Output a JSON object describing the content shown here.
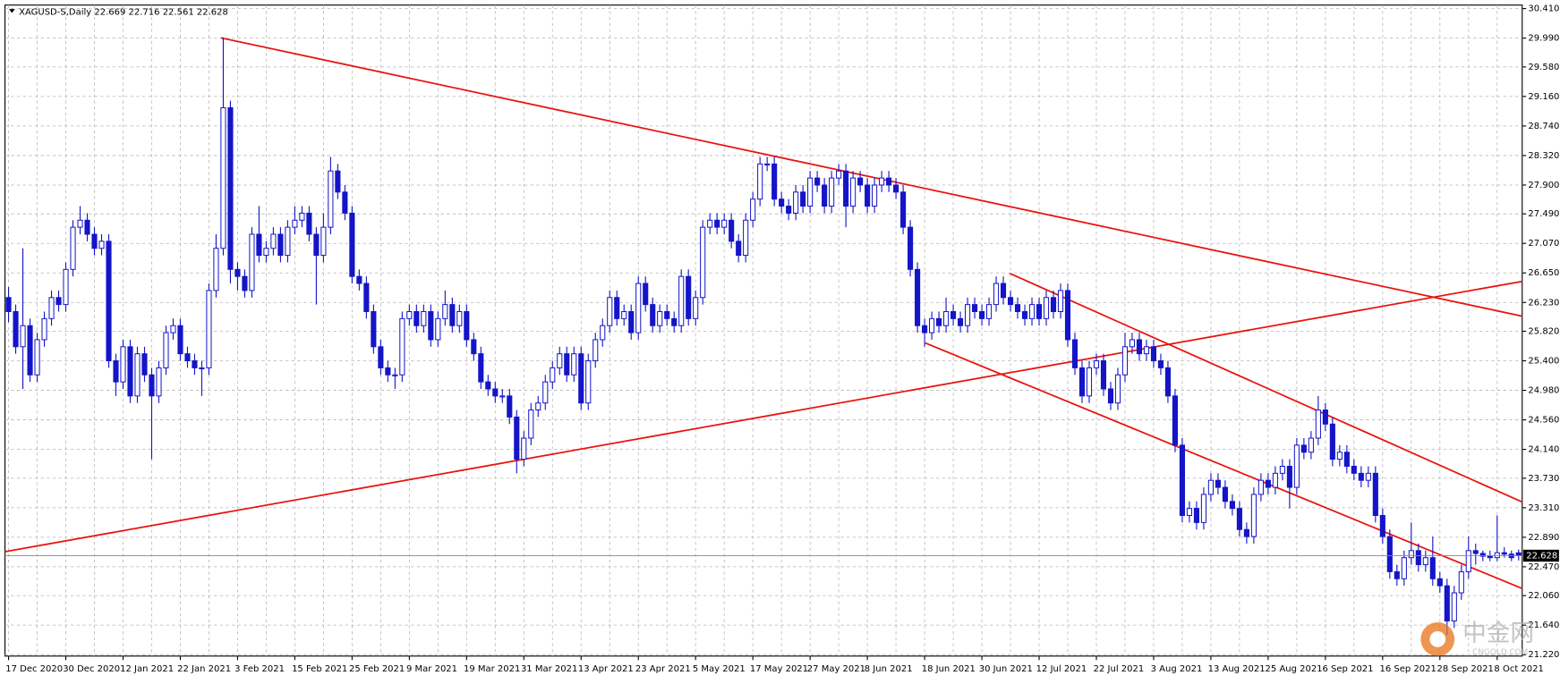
{
  "chart_data": {
    "type": "candlestick",
    "title": "XAGUSD-S,Daily  22.669 22.716 22.561 22.628",
    "watermark": "中金网",
    "watermark_sub": "CNGOLD.COM",
    "up_color": "#ffffff",
    "down_color": "#1414c8",
    "line_color": "#1414c8",
    "grid": true,
    "current_price": 22.628,
    "ylim": [
      21.2,
      30.46
    ],
    "yticks": [
      {
        "value": 30.41,
        "label": "30.410"
      },
      {
        "value": 29.99,
        "label": "29.990"
      },
      {
        "value": 29.58,
        "label": "29.580"
      },
      {
        "value": 29.16,
        "label": "29.160"
      },
      {
        "value": 28.74,
        "label": "28.740"
      },
      {
        "value": 28.32,
        "label": "28.320"
      },
      {
        "value": 27.9,
        "label": "27.900"
      },
      {
        "value": 27.49,
        "label": "27.490"
      },
      {
        "value": 27.07,
        "label": "27.070"
      },
      {
        "value": 26.65,
        "label": "26.650"
      },
      {
        "value": 26.23,
        "label": "26.230"
      },
      {
        "value": 25.82,
        "label": "25.820"
      },
      {
        "value": 25.4,
        "label": "25.400"
      },
      {
        "value": 24.98,
        "label": "24.980"
      },
      {
        "value": 24.56,
        "label": "24.560"
      },
      {
        "value": 24.14,
        "label": "24.140"
      },
      {
        "value": 23.73,
        "label": "23.730"
      },
      {
        "value": 23.31,
        "label": "23.310"
      },
      {
        "value": 22.89,
        "label": "22.890"
      },
      {
        "value": 22.47,
        "label": "22.470"
      },
      {
        "value": 22.06,
        "label": "22.060"
      },
      {
        "value": 21.64,
        "label": "21.640"
      },
      {
        "value": 21.22,
        "label": "21.220"
      }
    ],
    "categories": [
      "17 Dec 2020",
      null,
      null,
      null,
      null,
      null,
      null,
      null,
      "30 Dec 2020",
      null,
      null,
      null,
      null,
      null,
      null,
      null,
      "12 Jan 2021",
      null,
      null,
      null,
      null,
      null,
      null,
      null,
      "22 Jan 2021",
      null,
      null,
      null,
      null,
      null,
      null,
      null,
      "3 Feb 2021",
      null,
      null,
      null,
      null,
      null,
      null,
      null,
      "15 Feb 2021",
      null,
      null,
      null,
      null,
      null,
      null,
      null,
      "25 Feb 2021",
      null,
      null,
      null,
      null,
      null,
      null,
      null,
      "9 Mar 2021",
      null,
      null,
      null,
      null,
      null,
      null,
      null,
      "19 Mar 2021",
      null,
      null,
      null,
      null,
      null,
      null,
      null,
      "31 Mar 2021",
      null,
      null,
      null,
      null,
      null,
      null,
      null,
      "13 Apr 2021",
      null,
      null,
      null,
      null,
      null,
      null,
      null,
      "23 Apr 2021",
      null,
      null,
      null,
      null,
      null,
      null,
      null,
      "5 May 2021",
      null,
      null,
      null,
      null,
      null,
      null,
      null,
      "17 May 2021",
      null,
      null,
      null,
      null,
      null,
      null,
      null,
      "27 May 2021",
      null,
      null,
      null,
      null,
      null,
      null,
      null,
      "8 Jun 2021",
      null,
      null,
      null,
      null,
      null,
      null,
      null,
      "18 Jun 2021",
      null,
      null,
      null,
      null,
      null,
      null,
      null,
      "30 Jun 2021",
      null,
      null,
      null,
      null,
      null,
      null,
      null,
      "12 Jul 2021",
      null,
      null,
      null,
      null,
      null,
      null,
      null,
      "22 Jul 2021",
      null,
      null,
      null,
      null,
      null,
      null,
      null,
      "3 Aug 2021",
      null,
      null,
      null,
      null,
      null,
      null,
      null,
      "13 Aug 2021",
      null,
      null,
      null,
      null,
      null,
      null,
      null,
      "25 Aug 2021",
      null,
      null,
      null,
      null,
      null,
      null,
      null,
      "6 Sep 2021",
      null,
      null,
      null,
      null,
      null,
      null,
      null,
      "16 Sep 2021",
      null,
      null,
      null,
      null,
      null,
      null,
      null,
      "28 Sep 2021",
      null,
      null,
      null,
      null,
      null,
      null,
      null,
      "8 Oct 2021",
      null,
      null,
      null
    ],
    "open": [
      26.3,
      26.1,
      25.6,
      25.9,
      25.2,
      25.7,
      26.0,
      26.3,
      26.2,
      26.7,
      27.3,
      27.4,
      27.2,
      27.0,
      27.1,
      25.4,
      25.1,
      25.6,
      24.9,
      25.5,
      25.2,
      24.9,
      25.3,
      25.8,
      25.9,
      25.5,
      25.4,
      25.3,
      25.3,
      26.4,
      27.0,
      29.0,
      26.7,
      26.6,
      26.4,
      27.2,
      26.9,
      27.0,
      27.2,
      26.9,
      27.3,
      27.4,
      27.5,
      27.2,
      26.9,
      27.3,
      28.1,
      27.8,
      27.5,
      26.6,
      26.5,
      26.1,
      25.6,
      25.3,
      25.2,
      25.2,
      26.0,
      26.1,
      25.9,
      26.1,
      25.7,
      26.0,
      26.2,
      25.9,
      26.1,
      25.7,
      25.5,
      25.1,
      25.0,
      24.9,
      24.9,
      24.6,
      24.0,
      24.3,
      24.7,
      24.8,
      25.1,
      25.3,
      25.5,
      25.2,
      25.5,
      24.8,
      25.4,
      25.7,
      25.9,
      26.3,
      26.0,
      26.1,
      25.8,
      26.5,
      26.2,
      25.9,
      26.1,
      26.0,
      25.9,
      26.6,
      26.0,
      26.3,
      27.3,
      27.4,
      27.3,
      27.4,
      27.1,
      26.9,
      27.4,
      27.7,
      28.2,
      28.2,
      27.7,
      27.6,
      27.5,
      27.8,
      27.6,
      28.0,
      27.9,
      27.6,
      28.0,
      28.1,
      27.6,
      28.0,
      27.9,
      27.6,
      27.9,
      28.0,
      27.9,
      27.8,
      27.3,
      26.7,
      25.9,
      25.8,
      26.0,
      25.9,
      26.1,
      26.0,
      25.9,
      26.2,
      26.1,
      26.0,
      26.2,
      26.5,
      26.3,
      26.2,
      26.1,
      26.0,
      26.2,
      26.0,
      26.3,
      26.1,
      26.4,
      25.7,
      25.3,
      24.9,
      25.3,
      25.4,
      25.0,
      24.8,
      25.2,
      25.6,
      25.7,
      25.5,
      25.6,
      25.4,
      25.3,
      24.9,
      24.2,
      23.2,
      23.3,
      23.1,
      23.5,
      23.7,
      23.6,
      23.4,
      23.3,
      23.0,
      22.9,
      23.5,
      23.7,
      23.6,
      23.8,
      23.9,
      23.6,
      24.2,
      24.1,
      24.3,
      24.7,
      24.5,
      24.0,
      24.1,
      23.9,
      23.8,
      23.7,
      23.8,
      23.2,
      22.9,
      22.4,
      22.3,
      22.6,
      22.7,
      22.5,
      22.6,
      22.3,
      22.2,
      21.7,
      22.1,
      22.4,
      22.7,
      22.66,
      22.62,
      22.6,
      22.67,
      22.65,
      22.669
    ],
    "high": [
      26.45,
      26.2,
      27.0,
      26.0,
      25.8,
      26.1,
      26.4,
      26.4,
      26.8,
      27.4,
      27.6,
      27.5,
      27.3,
      27.2,
      27.2,
      25.5,
      25.7,
      25.7,
      25.6,
      25.6,
      25.3,
      25.4,
      25.9,
      26.0,
      26.0,
      25.6,
      25.5,
      25.4,
      26.5,
      27.2,
      30.0,
      29.1,
      26.8,
      26.7,
      27.3,
      27.6,
      27.1,
      27.3,
      27.3,
      27.4,
      27.6,
      27.6,
      27.6,
      27.3,
      27.5,
      28.3,
      28.2,
      27.9,
      27.6,
      26.7,
      26.6,
      26.2,
      25.7,
      25.4,
      25.3,
      26.1,
      26.2,
      26.2,
      26.2,
      26.2,
      26.1,
      26.4,
      26.3,
      26.2,
      26.2,
      25.8,
      25.6,
      25.2,
      25.1,
      25.0,
      25.0,
      24.7,
      24.4,
      24.8,
      24.9,
      25.2,
      25.4,
      25.6,
      25.6,
      25.6,
      25.6,
      25.5,
      25.8,
      26.0,
      26.4,
      26.4,
      26.2,
      26.2,
      26.6,
      26.6,
      26.3,
      26.2,
      26.2,
      26.1,
      26.7,
      26.7,
      26.4,
      27.4,
      27.5,
      27.5,
      27.5,
      27.5,
      27.2,
      27.5,
      27.8,
      28.3,
      28.3,
      28.3,
      27.8,
      27.7,
      27.9,
      27.9,
      28.1,
      28.1,
      28.0,
      28.1,
      28.2,
      28.2,
      28.1,
      28.1,
      28.0,
      28.0,
      28.1,
      28.1,
      28.0,
      27.9,
      27.4,
      26.8,
      26.0,
      26.1,
      26.1,
      26.3,
      26.2,
      26.1,
      26.3,
      26.3,
      26.2,
      26.3,
      26.6,
      26.6,
      26.4,
      26.3,
      26.2,
      26.3,
      26.3,
      26.4,
      26.4,
      26.5,
      26.5,
      25.8,
      25.4,
      25.4,
      25.5,
      25.5,
      25.1,
      25.3,
      25.8,
      25.8,
      25.8,
      25.7,
      25.7,
      25.5,
      25.4,
      25.0,
      24.3,
      23.4,
      23.4,
      23.6,
      23.8,
      23.8,
      23.7,
      23.5,
      23.4,
      23.1,
      23.6,
      23.8,
      23.8,
      23.9,
      24.0,
      24.0,
      24.3,
      24.3,
      24.4,
      24.9,
      24.8,
      24.6,
      24.2,
      24.2,
      24.0,
      23.9,
      23.9,
      23.9,
      23.3,
      23.0,
      22.5,
      22.7,
      23.1,
      22.8,
      22.7,
      22.9,
      22.4,
      22.3,
      22.2,
      22.5,
      22.9,
      22.8,
      22.7,
      22.7,
      23.2,
      22.75,
      22.7,
      22.716
    ],
    "low": [
      25.95,
      25.5,
      25.0,
      25.1,
      25.1,
      25.6,
      25.9,
      26.1,
      26.1,
      26.6,
      27.2,
      27.1,
      26.9,
      26.9,
      25.3,
      24.9,
      25.0,
      24.8,
      24.8,
      25.1,
      24.0,
      24.8,
      25.2,
      25.7,
      25.4,
      25.3,
      25.2,
      24.9,
      25.2,
      26.3,
      26.9,
      26.5,
      26.4,
      26.3,
      26.3,
      26.8,
      26.8,
      26.9,
      26.8,
      26.8,
      27.2,
      27.3,
      27.1,
      26.2,
      26.8,
      27.2,
      27.7,
      27.4,
      26.5,
      26.4,
      26.0,
      25.5,
      25.2,
      25.1,
      25.0,
      25.1,
      25.9,
      25.8,
      25.8,
      25.6,
      25.6,
      25.9,
      25.8,
      25.8,
      25.6,
      25.4,
      25.0,
      24.9,
      24.8,
      24.8,
      24.5,
      23.8,
      23.9,
      24.2,
      24.6,
      24.7,
      25.0,
      25.2,
      25.1,
      25.1,
      24.7,
      24.7,
      25.3,
      25.6,
      25.8,
      25.9,
      25.9,
      25.7,
      25.7,
      26.1,
      25.8,
      25.8,
      25.9,
      25.8,
      25.8,
      25.9,
      25.9,
      26.2,
      27.2,
      27.2,
      27.2,
      27.0,
      26.8,
      26.8,
      27.3,
      27.6,
      28.1,
      27.6,
      27.5,
      27.4,
      27.4,
      27.5,
      27.5,
      27.8,
      27.5,
      27.5,
      27.9,
      27.3,
      27.5,
      27.8,
      27.5,
      27.5,
      27.8,
      27.8,
      27.7,
      27.2,
      26.6,
      25.8,
      25.6,
      25.7,
      25.8,
      25.8,
      25.9,
      25.8,
      25.8,
      26.0,
      25.9,
      25.9,
      26.1,
      26.2,
      26.1,
      26.0,
      25.9,
      25.9,
      25.9,
      25.9,
      26.0,
      26.0,
      25.6,
      25.2,
      24.8,
      24.8,
      25.2,
      24.9,
      24.7,
      24.7,
      25.1,
      25.5,
      25.4,
      25.4,
      25.3,
      25.2,
      24.8,
      24.1,
      23.1,
      23.1,
      23.0,
      23.0,
      23.4,
      23.5,
      23.3,
      23.2,
      22.9,
      22.8,
      22.8,
      23.4,
      23.5,
      23.5,
      23.7,
      23.3,
      23.5,
      24.0,
      24.0,
      24.2,
      24.4,
      23.9,
      23.9,
      23.8,
      23.7,
      23.6,
      23.6,
      23.1,
      22.8,
      22.3,
      22.2,
      22.2,
      22.5,
      22.4,
      22.4,
      22.2,
      22.1,
      21.5,
      21.6,
      22.0,
      22.3,
      22.5,
      22.55,
      22.55,
      22.55,
      22.6,
      22.55,
      22.561
    ],
    "close": [
      26.1,
      25.6,
      25.9,
      25.2,
      25.7,
      26.0,
      26.3,
      26.2,
      26.7,
      27.3,
      27.4,
      27.2,
      27.0,
      27.1,
      25.4,
      25.1,
      25.6,
      24.9,
      25.5,
      25.2,
      24.9,
      25.3,
      25.8,
      25.9,
      25.5,
      25.4,
      25.3,
      25.3,
      26.4,
      27.0,
      29.0,
      26.7,
      26.6,
      26.4,
      27.2,
      26.9,
      27.0,
      27.2,
      26.9,
      27.3,
      27.4,
      27.5,
      27.2,
      26.9,
      27.3,
      28.1,
      27.8,
      27.5,
      26.6,
      26.5,
      26.1,
      25.6,
      25.3,
      25.2,
      25.2,
      26.0,
      26.1,
      25.9,
      26.1,
      25.7,
      26.0,
      26.2,
      25.9,
      26.1,
      25.7,
      25.5,
      25.1,
      25.0,
      24.9,
      24.9,
      24.6,
      24.0,
      24.3,
      24.7,
      24.8,
      25.1,
      25.3,
      25.5,
      25.2,
      25.5,
      24.8,
      25.4,
      25.7,
      25.9,
      26.3,
      26.0,
      26.1,
      25.8,
      26.5,
      26.2,
      25.9,
      26.1,
      26.0,
      25.9,
      26.6,
      26.0,
      26.3,
      27.3,
      27.4,
      27.3,
      27.4,
      27.1,
      26.9,
      27.4,
      27.7,
      28.2,
      28.2,
      27.7,
      27.6,
      27.5,
      27.8,
      27.6,
      28.0,
      27.9,
      27.6,
      28.0,
      28.1,
      27.6,
      28.0,
      27.9,
      27.6,
      27.9,
      28.0,
      27.9,
      27.8,
      27.3,
      26.7,
      25.9,
      25.8,
      26.0,
      25.9,
      26.1,
      26.0,
      25.9,
      26.2,
      26.1,
      26.0,
      26.2,
      26.5,
      26.3,
      26.2,
      26.1,
      26.0,
      26.2,
      26.0,
      26.3,
      26.1,
      26.4,
      25.7,
      25.3,
      24.9,
      25.3,
      25.4,
      25.0,
      24.8,
      25.2,
      25.6,
      25.7,
      25.5,
      25.6,
      25.4,
      25.3,
      24.9,
      24.2,
      23.2,
      23.3,
      23.1,
      23.5,
      23.7,
      23.6,
      23.4,
      23.3,
      23.0,
      22.9,
      23.5,
      23.7,
      23.6,
      23.8,
      23.9,
      23.6,
      24.2,
      24.1,
      24.3,
      24.7,
      24.5,
      24.0,
      24.1,
      23.9,
      23.8,
      23.7,
      23.8,
      23.2,
      22.9,
      22.4,
      22.3,
      22.6,
      22.7,
      22.5,
      22.6,
      22.3,
      22.2,
      21.7,
      22.1,
      22.4,
      22.7,
      22.66,
      22.62,
      22.6,
      22.67,
      22.65,
      22.6,
      22.628
    ]
  }
}
